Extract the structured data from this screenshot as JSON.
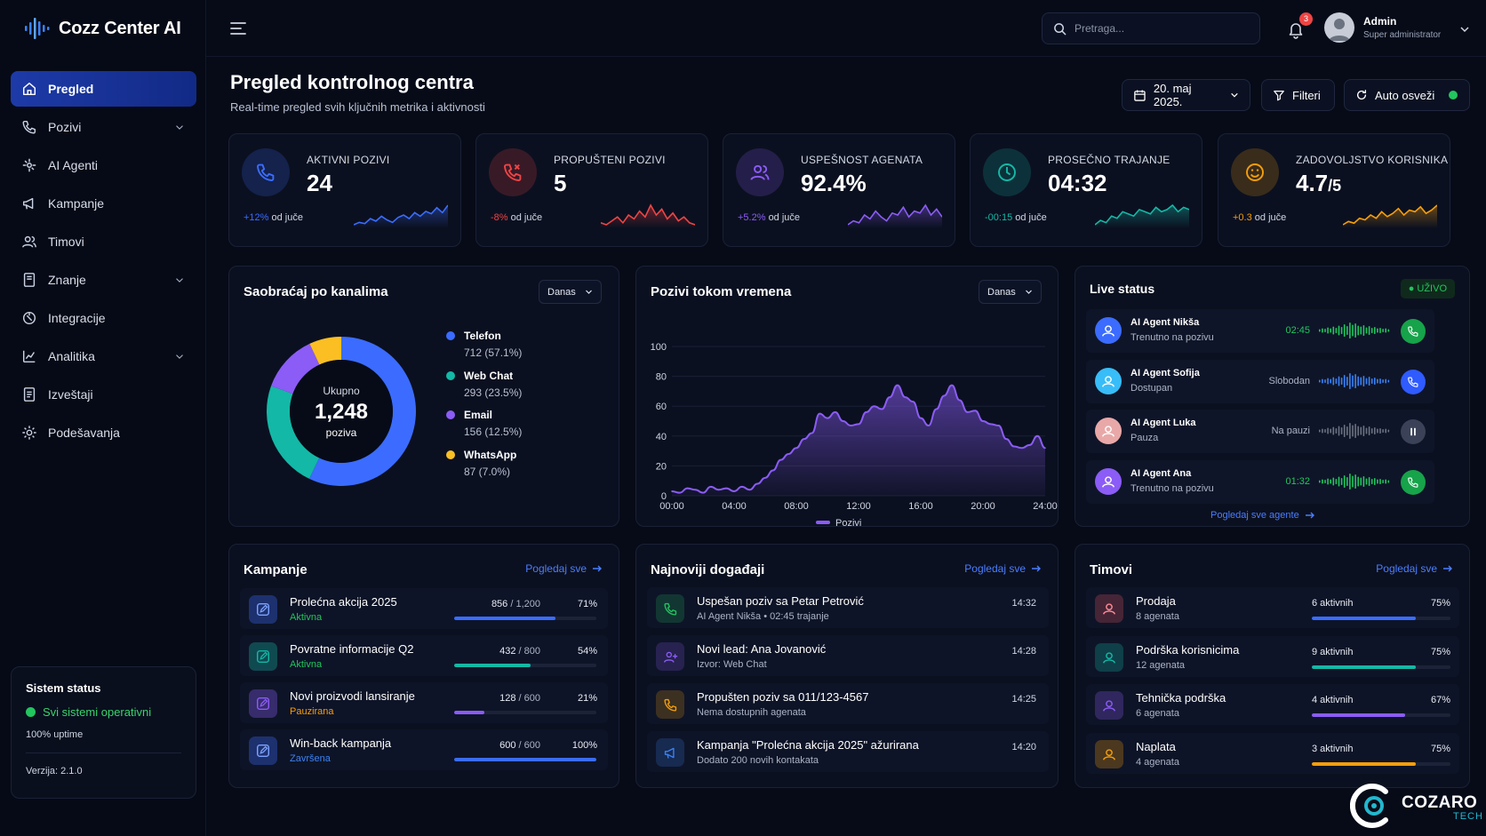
{
  "app": {
    "name": "Cozz Center AI"
  },
  "sidebar": {
    "items": [
      {
        "label": "Pregled",
        "icon": "home-icon",
        "active": true,
        "chevron": false
      },
      {
        "label": "Pozivi",
        "icon": "phone-icon",
        "active": false,
        "chevron": true
      },
      {
        "label": "AI Agenti",
        "icon": "ai-agent-icon",
        "active": false,
        "chevron": false
      },
      {
        "label": "Kampanje",
        "icon": "megaphone-icon",
        "active": false,
        "chevron": false
      },
      {
        "label": "Timovi",
        "icon": "users-icon",
        "active": false,
        "chevron": false
      },
      {
        "label": "Znanje",
        "icon": "book-icon",
        "active": false,
        "chevron": true
      },
      {
        "label": "Integracije",
        "icon": "plug-icon",
        "active": false,
        "chevron": false
      },
      {
        "label": "Analitika",
        "icon": "chart-icon",
        "active": false,
        "chevron": true
      },
      {
        "label": "Izveštaji",
        "icon": "report-icon",
        "active": false,
        "chevron": false
      },
      {
        "label": "Podešavanja",
        "icon": "gear-icon",
        "active": false,
        "chevron": false
      }
    ],
    "system": {
      "title": "Sistem status",
      "status": "Svi sistemi operativni",
      "uptime": "100% uptime",
      "version": "Verzija: 2.1.0"
    }
  },
  "header": {
    "search_placeholder": "Pretraga...",
    "notifications": "3",
    "user_name": "Admin",
    "user_role": "Super administrator"
  },
  "page": {
    "title": "Pregled kontrolnog centra",
    "subtitle": "Real-time pregled svih ključnih metrika i aktivnosti",
    "date": "20. maj 2025.",
    "filters": "Filteri",
    "auto_refresh": "Auto osveži"
  },
  "kpis": [
    {
      "label": "AKTIVNI POZIVI",
      "value": "24",
      "suffix": "",
      "change": "+12%",
      "change_text": "od juče",
      "color": "#3b6cff",
      "icon": "phone-icon"
    },
    {
      "label": "PROPUŠTENI POZIVI",
      "value": "5",
      "suffix": "",
      "change": "-8%",
      "change_text": "od juče",
      "color": "#ef4444",
      "icon": "phone-missed-icon"
    },
    {
      "label": "USPEŠNOST AGENATA",
      "value": "92.4%",
      "suffix": "",
      "change": "+5.2%",
      "change_text": "od juče",
      "color": "#8b5cf6",
      "icon": "users-icon"
    },
    {
      "label": "PROSEČNO TRAJANJE",
      "value": "04:32",
      "suffix": "",
      "change": "-00:15",
      "change_text": "od juče",
      "color": "#14b8a6",
      "icon": "clock-icon"
    },
    {
      "label": "ZADOVOLJSTVO KORISNIKA",
      "value": "4.7",
      "suffix": "/5",
      "change": "+0.3",
      "change_text": "od juče",
      "color": "#f59e0b",
      "icon": "smile-icon"
    }
  ],
  "traffic": {
    "title": "Saobraćaj po kanalima",
    "period": "Danas",
    "center_label": "Ukupno",
    "center_value": "1,248",
    "center_unit": "poziva"
  },
  "calls_chart": {
    "title": "Pozivi tokom vremena",
    "period": "Danas"
  },
  "live": {
    "title": "Live status",
    "badge": "● UŽIVO",
    "link": "Pogledaj sve agente",
    "agents": [
      {
        "name": "AI Agent Nikša",
        "status": "Trenutno na pozivu",
        "time": "02:45",
        "time_color": "#22c55e",
        "avatar_color": "#3b6cff",
        "action_color": "#16a34a",
        "action": "phone-icon"
      },
      {
        "name": "AI Agent Sofija",
        "status": "Dostupan",
        "time": "Slobodan",
        "time_color": "#aab3c8",
        "avatar_color": "#38bdf8",
        "action_color": "#2f5bff",
        "action": "phone-icon"
      },
      {
        "name": "AI Agent Luka",
        "status": "Pauza",
        "time": "Na pauzi",
        "time_color": "#aab3c8",
        "avatar_color": "#e9a8a8",
        "action_color": "#3b4257",
        "action": "pause-icon"
      },
      {
        "name": "AI Agent Ana",
        "status": "Trenutno na pozivu",
        "time": "01:32",
        "time_color": "#22c55e",
        "avatar_color": "#8b5cf6",
        "action_color": "#16a34a",
        "action": "phone-icon"
      }
    ]
  },
  "campaigns": {
    "title": "Kampanje",
    "link": "Pogledaj sve",
    "items": [
      {
        "name": "Prolećna akcija 2025",
        "status": "Aktivna",
        "status_color": "#22c55e",
        "count": "856",
        "total": "/ 1,200",
        "pct": "71%",
        "progress": 0.71,
        "color": "#3b6cff"
      },
      {
        "name": "Povratne informacije Q2",
        "status": "Aktivna",
        "status_color": "#22c55e",
        "count": "432",
        "total": "/ 800",
        "pct": "54%",
        "progress": 0.54,
        "color": "#14b8a6"
      },
      {
        "name": "Novi proizvodi lansiranje",
        "status": "Pauzirana",
        "status_color": "#f59e0b",
        "count": "128",
        "total": "/ 600",
        "pct": "21%",
        "progress": 0.21,
        "color": "#8b5cf6"
      },
      {
        "name": "Win-back kampanja",
        "status": "Završena",
        "status_color": "#3b82f6",
        "count": "600",
        "total": "/ 600",
        "pct": "100%",
        "progress": 1.0,
        "color": "#3b6cff"
      }
    ]
  },
  "events": {
    "title": "Najnoviji događaji",
    "link": "Pogledaj sve",
    "items": [
      {
        "title": "Uspešan poziv sa Petar Petrović",
        "sub": "AI Agent Nikša  •  02:45 trajanje",
        "time": "14:32",
        "color": "#22c55e",
        "icon": "phone-icon"
      },
      {
        "title": "Novi lead: Ana Jovanović",
        "sub": "Izvor: Web Chat",
        "time": "14:28",
        "color": "#8b5cf6",
        "icon": "user-plus-icon"
      },
      {
        "title": "Propušten poziv sa 011/123-4567",
        "sub": "Nema dostupnih agenata",
        "time": "14:25",
        "color": "#f59e0b",
        "icon": "phone-icon"
      },
      {
        "title": "Kampanja \"Prolećna akcija 2025\" ažurirana",
        "sub": "Dodato 200 novih kontakata",
        "time": "14:20",
        "color": "#3b82f6",
        "icon": "megaphone-icon"
      }
    ]
  },
  "teams": {
    "title": "Timovi",
    "link": "Pogledaj sve",
    "items": [
      {
        "name": "Prodaja",
        "agents": "8 agenata",
        "active": "6 aktivnih",
        "pct": "75%",
        "progress": 0.75,
        "color": "#3b6cff",
        "icon_color": "#e25563"
      },
      {
        "name": "Podrška korisnicima",
        "agents": "12 agenata",
        "active": "9 aktivnih",
        "pct": "75%",
        "progress": 0.75,
        "color": "#14b8a6",
        "icon_color": "#14b8a6"
      },
      {
        "name": "Tehnička podrška",
        "agents": "6 agenata",
        "active": "4 aktivnih",
        "pct": "67%",
        "progress": 0.67,
        "color": "#8b5cf6",
        "icon_color": "#8b5cf6"
      },
      {
        "name": "Naplata",
        "agents": "4 agenata",
        "active": "3 aktivnih",
        "pct": "75%",
        "progress": 0.75,
        "color": "#f59e0b",
        "icon_color": "#f59e0b"
      }
    ]
  },
  "brand": {
    "name": "COZARO",
    "tag": "TECH"
  },
  "chart_data": [
    {
      "type": "pie",
      "title": "Saobraćaj po kanalima",
      "categories": [
        "Telefon",
        "Web Chat",
        "Email",
        "WhatsApp"
      ],
      "values": [
        712,
        293,
        156,
        87
      ],
      "labels": [
        "712 (57.1%)",
        "293 (23.5%)",
        "156 (12.5%)",
        "87 (7.0%)"
      ],
      "colors": [
        "#3b6cff",
        "#14b8a6",
        "#8b5cf6",
        "#fbbf24"
      ]
    },
    {
      "type": "area",
      "title": "Pozivi tokom vremena",
      "xticks": [
        "00:00",
        "04:00",
        "08:00",
        "12:00",
        "16:00",
        "20:00",
        "24:00"
      ],
      "yticks": [
        "0",
        "20",
        "40",
        "60",
        "80",
        "100"
      ],
      "ylim": [
        0,
        100
      ],
      "x_hours": [
        0,
        0.5,
        1,
        1.5,
        2,
        2.5,
        3,
        3.5,
        4,
        4.5,
        5,
        5.5,
        6,
        6.5,
        7,
        7.5,
        8,
        8.5,
        9,
        9.5,
        10,
        10.5,
        11,
        11.5,
        12,
        12.5,
        13,
        13.5,
        14,
        14.5,
        15,
        15.5,
        16,
        16.5,
        17,
        17.5,
        18,
        18.5,
        19,
        19.5,
        20,
        20.5,
        21,
        21.5,
        22,
        22.5,
        23,
        23.5,
        24
      ],
      "y": [
        3,
        2,
        5,
        4,
        2,
        6,
        4,
        5,
        3,
        6,
        4,
        8,
        12,
        17,
        24,
        28,
        32,
        38,
        42,
        55,
        52,
        56,
        50,
        47,
        48,
        56,
        60,
        58,
        66,
        74,
        66,
        63,
        52,
        47,
        58,
        67,
        74,
        64,
        56,
        57,
        50,
        48,
        47,
        38,
        33,
        32,
        34,
        40,
        32
      ],
      "series": [
        {
          "name": "Pozivi"
        }
      ],
      "color": "#8b5cf6"
    }
  ],
  "sparks": [
    [
      4,
      6,
      5,
      9,
      7,
      11,
      8,
      6,
      10,
      12,
      9,
      14,
      11,
      15,
      13,
      18,
      14,
      20
    ],
    [
      6,
      5,
      7,
      9,
      6,
      10,
      8,
      12,
      9,
      15,
      10,
      13,
      8,
      11,
      7,
      9,
      6,
      5
    ],
    [
      5,
      7,
      6,
      10,
      8,
      12,
      9,
      7,
      11,
      10,
      14,
      9,
      12,
      11,
      15,
      10,
      13,
      9
    ],
    [
      6,
      8,
      7,
      10,
      9,
      12,
      11,
      10,
      13,
      12,
      11,
      14,
      12,
      13,
      15,
      12,
      14,
      13
    ],
    [
      4,
      6,
      5,
      8,
      7,
      10,
      8,
      12,
      9,
      11,
      14,
      10,
      13,
      12,
      15,
      11,
      13,
      16
    ]
  ]
}
